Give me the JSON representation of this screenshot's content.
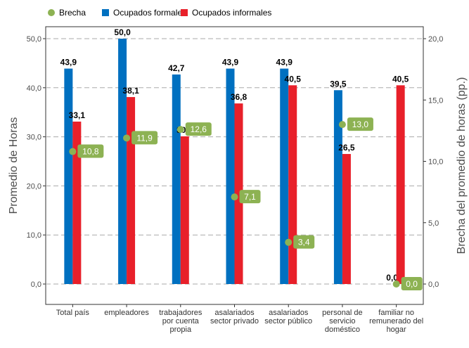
{
  "chart_data": {
    "type": "bar",
    "categories": [
      [
        "Total país"
      ],
      [
        "empleadores"
      ],
      [
        "trabajadores",
        "por cuenta",
        "propia"
      ],
      [
        "asalariados",
        "sector privado"
      ],
      [
        "asalariados",
        "sector público"
      ],
      [
        "personal de",
        "servicio",
        "doméstico"
      ],
      [
        "familiar no",
        "remunerado del",
        "hogar"
      ]
    ],
    "series": [
      {
        "name": "Ocupados formales",
        "color": "#0070C0",
        "values": [
          43.9,
          50.0,
          42.7,
          43.9,
          43.9,
          39.5,
          0.0
        ],
        "labels": [
          "43,9",
          "50,0",
          "42,7",
          "43,9",
          "43,9",
          "39,5",
          "0,0"
        ]
      },
      {
        "name": "Ocupados informales",
        "color": "#E8202A",
        "values": [
          33.1,
          38.1,
          30.1,
          36.8,
          40.5,
          26.5,
          40.5
        ],
        "labels": [
          "33,1",
          "38,1",
          "30,1",
          "36,8",
          "40,5",
          "26,5",
          "40,5"
        ]
      },
      {
        "name": "Brecha",
        "color": "#8DB253",
        "axis": "right",
        "values": [
          10.8,
          11.9,
          12.6,
          7.1,
          3.4,
          13.0,
          0.0
        ],
        "labels": [
          "10,8",
          "11,9",
          "12,6",
          "7,1",
          "3,4",
          "13,0",
          "0,0"
        ]
      }
    ],
    "ylabel": "Promedio de Horas",
    "y2label": "Brecha del promedio de horas (pp.)",
    "ylim": [
      0,
      50
    ],
    "y2lim": [
      0,
      20
    ],
    "yticks": [
      "0,0",
      "10,0",
      "20,0",
      "30,0",
      "40,0",
      "50,0"
    ],
    "y2ticks": [
      "0,0",
      "5,0",
      "10,0",
      "15,0",
      "20,0"
    ],
    "legend": [
      "Brecha",
      "Ocupados formales",
      "Ocupados informales"
    ],
    "legend_position": "top",
    "grid": "horizontal dashed"
  }
}
